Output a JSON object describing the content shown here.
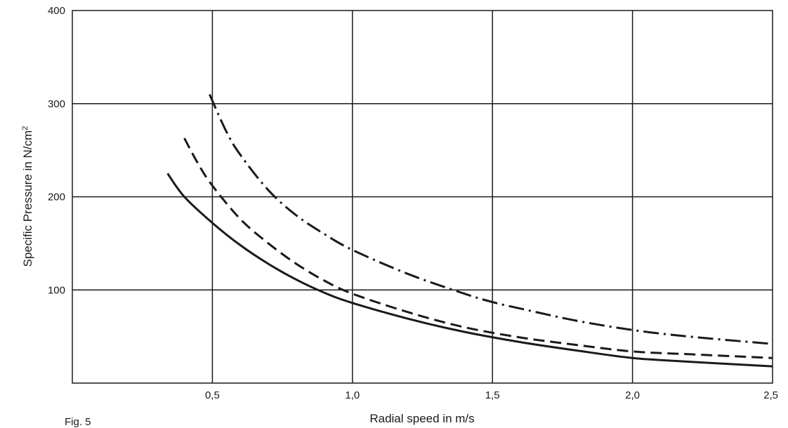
{
  "chart_data": {
    "type": "line",
    "figure_label": "Fig. 5",
    "xlabel": "Radial speed in m/s",
    "ylabel_main": "Specific Pressure in N/cm",
    "ylabel_sup": "2",
    "xlim": [
      0,
      2.5
    ],
    "ylim": [
      0,
      400
    ],
    "x_ticks": [
      {
        "value": 0.5,
        "label": "0,5"
      },
      {
        "value": 1.0,
        "label": "1,0"
      },
      {
        "value": 1.5,
        "label": "1,5"
      },
      {
        "value": 2.0,
        "label": "2,0"
      },
      {
        "value": 2.5,
        "label": "2,5"
      }
    ],
    "y_ticks": [
      {
        "value": 100,
        "label": "100"
      },
      {
        "value": 200,
        "label": "200"
      },
      {
        "value": 300,
        "label": "300"
      },
      {
        "value": 400,
        "label": "400"
      }
    ],
    "grid": true,
    "line_color": "#1a1a1a",
    "series": [
      {
        "style": "solid",
        "x": [
          0.34,
          0.4,
          0.5,
          0.6,
          0.7,
          0.8,
          0.9,
          1.0,
          1.2,
          1.4,
          1.6,
          1.8,
          2.0,
          2.2,
          2.5
        ],
        "y": [
          225,
          200,
          172,
          148,
          128,
          111,
          97,
          86,
          69,
          55,
          44,
          35,
          27,
          23,
          18
        ]
      },
      {
        "style": "dashed",
        "x": [
          0.4,
          0.45,
          0.5,
          0.6,
          0.7,
          0.8,
          0.9,
          1.0,
          1.2,
          1.4,
          1.6,
          1.8,
          2.0,
          2.2,
          2.5
        ],
        "y": [
          263,
          235,
          212,
          176,
          150,
          128,
          110,
          96,
          76,
          60,
          49,
          41,
          34,
          31,
          27
        ]
      },
      {
        "style": "dashdot",
        "x": [
          0.49,
          0.55,
          0.6,
          0.7,
          0.8,
          0.9,
          1.0,
          1.2,
          1.4,
          1.5,
          1.6,
          1.8,
          2.0,
          2.2,
          2.5
        ],
        "y": [
          310,
          270,
          245,
          207,
          180,
          160,
          143,
          117,
          96,
          87,
          80,
          67,
          57,
          50,
          42
        ]
      }
    ]
  }
}
